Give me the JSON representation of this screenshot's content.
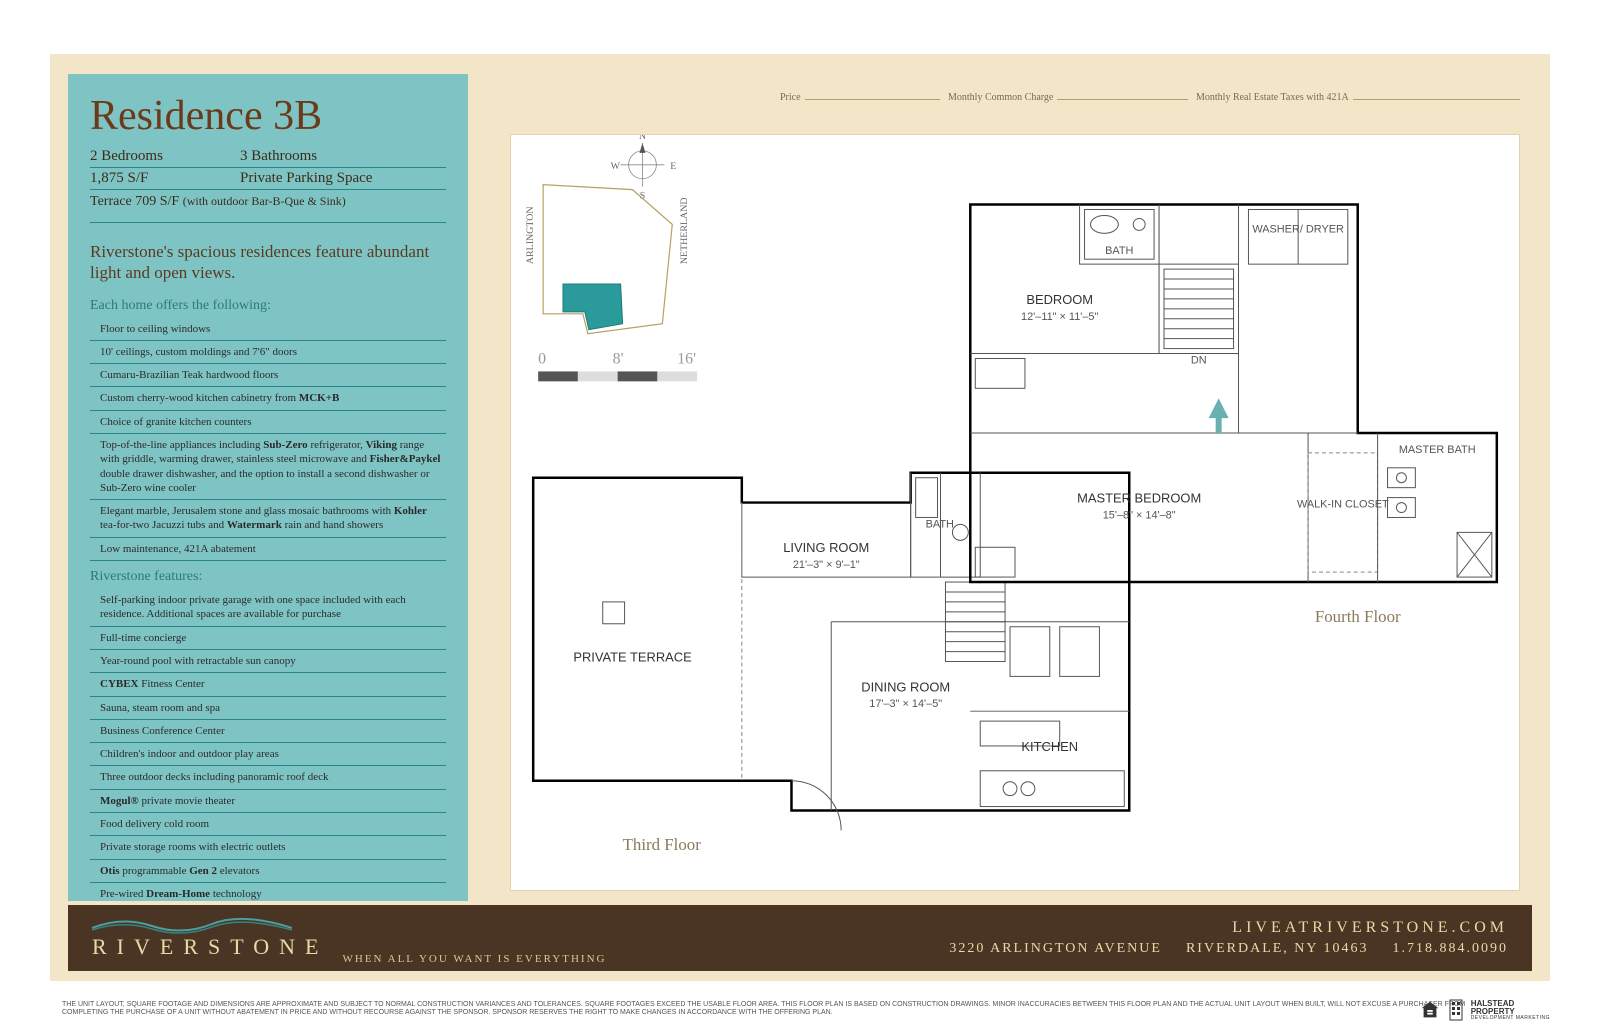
{
  "colors": {
    "page_bg": "#f3e6c8",
    "teal_panel": "#7fc4c4",
    "teal_rule": "#2a8585",
    "title_brown": "#6b3a1a",
    "footer_brown": "#4a3424",
    "footer_text": "#e8d9a8",
    "section_teal": "#2a7a7a",
    "keyplan_accent": "#2a9a9a"
  },
  "header": {
    "title": "Residence 3B",
    "bedrooms": "2 Bedrooms",
    "bathrooms": "3 Bathrooms",
    "sqft": "1,875 S/F",
    "parking": "Private Parking Space",
    "terrace": "Terrace 709 S/F",
    "terrace_note": "(with outdoor Bar-B-Que & Sink)"
  },
  "blurb": "Riverstone's spacious residences feature abundant light and open views.",
  "home_features_title": "Each home offers the following:",
  "home_features": [
    "Floor to ceiling windows",
    "10' ceilings, custom moldings and 7'6\" doors",
    "Cumaru-Brazilian Teak hardwood floors",
    "Custom cherry-wood kitchen cabinetry from <strong>MCK+B</strong>",
    "Choice of granite kitchen counters",
    "Top-of-the-line appliances including <strong>Sub-Zero</strong> refrigerator, <strong>Viking</strong> range with griddle, warming drawer, stainless steel microwave and <strong>Fisher&Paykel</strong> double drawer dishwasher, and the option to install a second dishwasher or Sub-Zero wine cooler",
    "Elegant marble, Jerusalem stone and glass mosaic bathrooms with <strong>Kohler</strong> tea-for-two Jacuzzi tubs and <strong>Watermark</strong> rain and hand showers",
    "Low maintenance, 421A abatement"
  ],
  "building_features_title": "Riverstone features:",
  "building_features": [
    "Self-parking indoor private garage with one space included with each residence. Additional spaces are available for purchase",
    "Full-time concierge",
    "Year-round pool with retractable sun canopy",
    "<strong>CYBEX</strong> Fitness Center",
    "Sauna, steam room and spa",
    "Business Conference Center",
    "Children's indoor and outdoor play areas",
    "Three outdoor decks including panoramic roof deck",
    "<strong>Mogul®</strong> private movie theater",
    "Food delivery cold room",
    "Private storage rooms with electric outlets",
    "<strong>Otis</strong> programmable <strong>Gen 2</strong> elevators",
    "Pre-wired <strong>Dream-Home</strong> technology"
  ],
  "price_labels": {
    "price": "Price",
    "monthly_cc": "Monthly Common Charge",
    "taxes": "Monthly Real Estate Taxes with 421A"
  },
  "floorplan": {
    "third_floor_label": "Third Floor",
    "fourth_floor_label": "Fourth Floor",
    "compass": {
      "n": "N",
      "s": "S",
      "e": "E",
      "w": "W"
    },
    "keyplan": {
      "street1": "ARLINGTON",
      "street2": "NETHERLAND"
    },
    "scale": {
      "zero": "0",
      "mid": "8'",
      "max": "16'"
    },
    "rooms": {
      "private_terrace": "PRIVATE TERRACE",
      "living": {
        "name": "LIVING ROOM",
        "dims": "21'–3\" × 9'–1\""
      },
      "dining": {
        "name": "DINING ROOM",
        "dims": "17'–3\" × 14'–5\""
      },
      "kitchen": "KITCHEN",
      "bath3": "BATH",
      "bedroom": {
        "name": "BEDROOM",
        "dims": "12'–11\" × 11'–5\""
      },
      "master": {
        "name": "MASTER BEDROOM",
        "dims": "15'–8\" × 14'–8\""
      },
      "master_bath": "MASTER BATH",
      "walkin": "WALK-IN CLOSET",
      "bath4": "BATH",
      "washer": "WASHER/ DRYER",
      "dn": "DN"
    }
  },
  "footer": {
    "logo": "RIVERSTONE",
    "tagline": "WHEN ALL YOU WANT IS EVERYTHING",
    "website": "LIVEATRIVERSTONE.COM",
    "address": "3220 ARLINGTON AVENUE",
    "city": "RIVERDALE, NY 10463",
    "phone": "1.718.884.0090"
  },
  "disclaimer": "THE UNIT LAYOUT, SQUARE FOOTAGE AND DIMENSIONS ARE APPROXIMATE AND SUBJECT TO NORMAL CONSTRUCTION VARIANCES AND TOLERANCES. SQUARE FOOTAGES EXCEED THE USABLE FLOOR AREA. THIS FLOOR PLAN IS BASED ON CONSTRUCTION DRAWINGS. MINOR INACCURACIES BETWEEN THIS FLOOR PLAN AND THE ACTUAL UNIT LAYOUT WHEN BUILT, WILL NOT EXCUSE A PURCHASER FROM COMPLETING THE PURCHASE OF A UNIT WITHOUT ABATEMENT IN PRICE AND WITHOUT RECOURSE AGAINST THE SPONSOR. SPONSOR RESERVES THE RIGHT TO MAKE CHANGES IN ACCORDANCE WITH THE OFFERING PLAN.",
  "halstead": {
    "l1": "HALSTEAD",
    "l2": "PROPERTY",
    "l3": "DEVELOPMENT MARKETING"
  }
}
